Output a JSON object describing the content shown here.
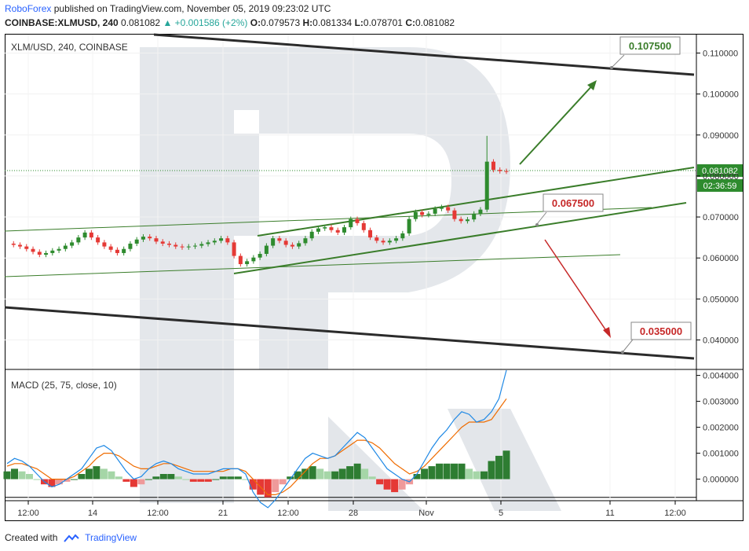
{
  "header": {
    "author": "RoboForex",
    "published": "published on TradingView.com, November 05, 2019 09:23:02 UTC",
    "symbol": "COINBASE:XLMUSD, 240",
    "last": "0.081082",
    "change": "▲ +0.001586 (+2%)",
    "o_label": "O:",
    "o": "0.079573",
    "h_label": "H:",
    "h": "0.081334",
    "l_label": "L:",
    "l": "0.078701",
    "c_label": "C:",
    "c": "0.081082"
  },
  "footer": {
    "created": "Created with",
    "brand": "TradingView"
  },
  "colors": {
    "up": "#2e8b2e",
    "down": "#e53935",
    "channel": "#2b2b2b",
    "trend": "#3a7d2a",
    "macd_line": "#1e88e5",
    "signal_line": "#ef6c00"
  },
  "chart_data": [
    {
      "type": "candlestick",
      "title": "XLM/USD, 240, COINBASE",
      "y_axis": {
        "ylim": [
          0.033,
          0.1145
        ],
        "ticks": [
          "0.110000",
          "0.100000",
          "0.090000",
          "0.080000",
          "0.070000",
          "0.060000",
          "0.050000",
          "0.040000"
        ]
      },
      "x_ticks": [
        "12:00",
        "14",
        "12:00",
        "21",
        "12:00",
        "28",
        "Nov",
        "5",
        "11",
        "12:00"
      ],
      "current_price_label": "0.081082",
      "countdown_label": "02:36:59",
      "price_path": [
        0.0635,
        0.0632,
        0.0628,
        0.0622,
        0.0615,
        0.0608,
        0.0612,
        0.0618,
        0.0622,
        0.063,
        0.0638,
        0.065,
        0.0662,
        0.065,
        0.0638,
        0.0628,
        0.062,
        0.0612,
        0.0622,
        0.0635,
        0.0645,
        0.0652,
        0.0648,
        0.064,
        0.0635,
        0.0632,
        0.0628,
        0.0626,
        0.0628,
        0.063,
        0.0634,
        0.0638,
        0.0642,
        0.0648,
        0.0638,
        0.0605,
        0.0585,
        0.0592,
        0.0601,
        0.061,
        0.063,
        0.0648,
        0.0642,
        0.0632,
        0.0628,
        0.0636,
        0.0648,
        0.0664,
        0.0672,
        0.0675,
        0.0668,
        0.0662,
        0.0675,
        0.0695,
        0.0685,
        0.0668,
        0.065,
        0.0642,
        0.0638,
        0.0642,
        0.0648,
        0.066,
        0.0695,
        0.0712,
        0.0705,
        0.0708,
        0.072,
        0.0724,
        0.0716,
        0.0695,
        0.069,
        0.0694,
        0.0708,
        0.0718,
        0.0835,
        0.0815,
        0.0812,
        0.0811
      ],
      "annotations": [
        {
          "label": "0.107500",
          "kind": "target-up"
        },
        {
          "label": "0.067500",
          "kind": "support"
        },
        {
          "label": "0.035000",
          "kind": "target-down"
        }
      ]
    },
    {
      "type": "histogram+line",
      "title": "MACD (25, 75, close, 10)",
      "y_axis": {
        "ylim": [
          -0.0008,
          0.0042
        ],
        "ticks": [
          "0.004000",
          "0.003000",
          "0.002000",
          "0.001000",
          "0.000000"
        ]
      },
      "macd": [
        0.0006,
        0.0008,
        0.0007,
        0.0005,
        0.0002,
        -0.0001,
        -0.0003,
        -0.0002,
        0.0,
        0.0002,
        0.0004,
        0.0008,
        0.0012,
        0.0013,
        0.0011,
        0.0007,
        0.0003,
        0.0,
        0.0001,
        0.0004,
        0.0006,
        0.0007,
        0.0006,
        0.0004,
        0.0003,
        0.0002,
        0.0002,
        0.0002,
        0.0003,
        0.0004,
        0.0004,
        0.0004,
        0.0002,
        -0.0005,
        -0.0009,
        -0.0011,
        -0.0008,
        -0.0004,
        0.0,
        0.0004,
        0.0008,
        0.001,
        0.0009,
        0.0008,
        0.0009,
        0.0012,
        0.0015,
        0.0018,
        0.0016,
        0.0012,
        0.0008,
        0.0004,
        0.0002,
        0.0,
        -0.0001,
        0.0002,
        0.0007,
        0.0012,
        0.0016,
        0.0019,
        0.0023,
        0.0026,
        0.0025,
        0.0022,
        0.0023,
        0.0026,
        0.0031,
        0.0042
      ],
      "signal": [
        0.0005,
        0.0006,
        0.0006,
        0.0005,
        0.0004,
        0.0002,
        0.0,
        0.0,
        0.0,
        0.0001,
        0.0003,
        0.0005,
        0.0008,
        0.001,
        0.001,
        0.0009,
        0.0007,
        0.0005,
        0.0004,
        0.0004,
        0.0005,
        0.0006,
        0.0006,
        0.0005,
        0.0004,
        0.0003,
        0.0003,
        0.0003,
        0.0003,
        0.0003,
        0.0004,
        0.0004,
        0.0003,
        0.0,
        -0.0003,
        -0.0006,
        -0.0006,
        -0.0005,
        -0.0003,
        0.0,
        0.0003,
        0.0006,
        0.0008,
        0.0008,
        0.0009,
        0.0011,
        0.0013,
        0.0015,
        0.0015,
        0.0014,
        0.0012,
        0.0009,
        0.0006,
        0.0004,
        0.0002,
        0.0003,
        0.0005,
        0.0008,
        0.0011,
        0.0014,
        0.0017,
        0.002,
        0.0022,
        0.0022,
        0.0022,
        0.0023,
        0.0027,
        0.0031
      ],
      "histogram": [
        0.0003,
        0.0004,
        0.0003,
        0.0002,
        0.0,
        -0.0002,
        -0.0003,
        -0.0002,
        -0.0001,
        0.0,
        0.0002,
        0.0004,
        0.0005,
        0.0004,
        0.0003,
        0.0001,
        -0.0001,
        -0.0003,
        -0.0002,
        0.0,
        0.0001,
        0.0002,
        0.0002,
        0.0001,
        0.0,
        -0.0001,
        -0.0001,
        -0.0001,
        0.0,
        0.0001,
        0.0001,
        0.0001,
        0.0,
        -0.0004,
        -0.0006,
        -0.0007,
        -0.0005,
        -0.0002,
        0.0001,
        0.0003,
        0.0004,
        0.0005,
        0.0004,
        0.0003,
        0.0003,
        0.0004,
        0.0005,
        0.0006,
        0.0004,
        0.0001,
        -0.0002,
        -0.0004,
        -0.0005,
        -0.0004,
        -0.0002,
        0.0002,
        0.0004,
        0.0005,
        0.0006,
        0.0006,
        0.0006,
        0.0006,
        0.0004,
        0.0003,
        0.0003,
        0.0007,
        0.0009,
        0.0011
      ]
    }
  ]
}
